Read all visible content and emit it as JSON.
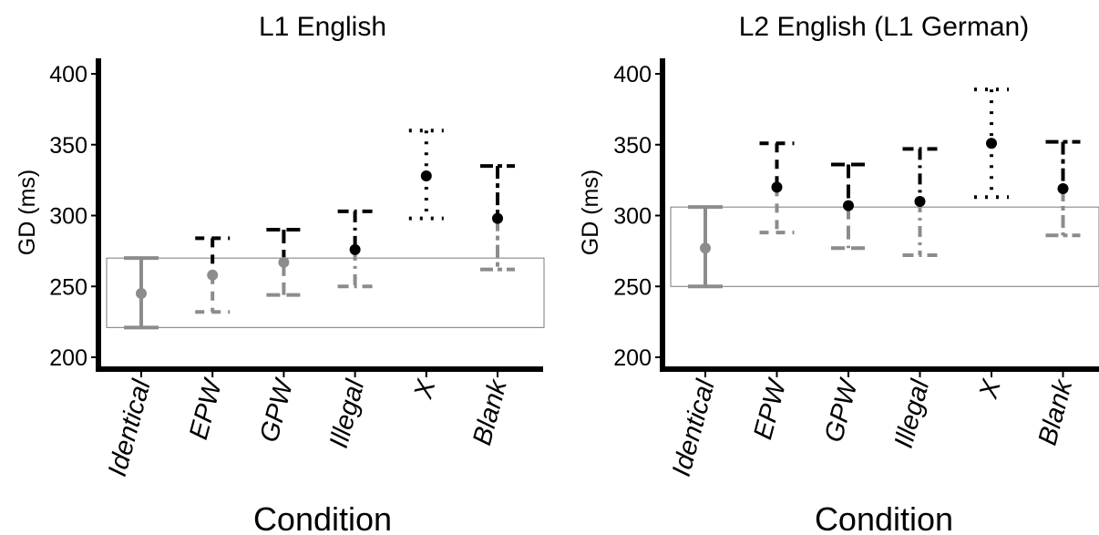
{
  "chart_data": [
    {
      "type": "errorbar",
      "title": "L1 English",
      "xlabel": "Condition",
      "ylabel": "GD (ms)",
      "ylim": [
        195,
        402
      ],
      "yticks": [
        200,
        250,
        300,
        350,
        400
      ],
      "categories": [
        "Identical",
        "EPW",
        "GPW",
        "Illegal",
        "X",
        "Blank"
      ],
      "reference_band": [
        221,
        270
      ],
      "points": [
        {
          "mean": 245,
          "low": 221,
          "high": 270,
          "lower_style": "solid",
          "upper_style": "solid",
          "lower_color": "#8c8c8c",
          "upper_color": "#8c8c8c",
          "point_color": "#8c8c8c"
        },
        {
          "mean": 258,
          "low": 232,
          "high": 284,
          "lower_style": "dashed",
          "upper_style": "dashed",
          "lower_color": "#8c8c8c",
          "upper_color": "#000000",
          "point_color": "#8c8c8c"
        },
        {
          "mean": 267,
          "low": 244,
          "high": 290,
          "lower_style": "longdash",
          "upper_style": "longdash",
          "lower_color": "#8c8c8c",
          "upper_color": "#000000",
          "point_color": "#8c8c8c"
        },
        {
          "mean": 276,
          "low": 250,
          "high": 303,
          "lower_style": "dashdot",
          "upper_style": "dashdot",
          "lower_color": "#8c8c8c",
          "upper_color": "#000000",
          "point_color": "#000000"
        },
        {
          "mean": 328,
          "low": 298,
          "high": 360,
          "lower_style": "dotted",
          "upper_style": "dotted",
          "lower_color": "#000000",
          "upper_color": "#000000",
          "point_color": "#000000"
        },
        {
          "mean": 298,
          "low": 262,
          "high": 335,
          "lower_style": "twodash",
          "upper_style": "twodash",
          "lower_color": "#8c8c8c",
          "upper_color": "#000000",
          "point_color": "#000000"
        }
      ]
    },
    {
      "type": "errorbar",
      "title": "L2 English (L1 German)",
      "xlabel": "Condition",
      "ylabel": "GD (ms)",
      "ylim": [
        195,
        402
      ],
      "yticks": [
        200,
        250,
        300,
        350,
        400
      ],
      "categories": [
        "Identical",
        "EPW",
        "GPW",
        "Illegal",
        "X",
        "Blank"
      ],
      "reference_band": [
        250,
        306
      ],
      "points": [
        {
          "mean": 277,
          "low": 250,
          "high": 306,
          "lower_style": "solid",
          "upper_style": "solid",
          "lower_color": "#8c8c8c",
          "upper_color": "#8c8c8c",
          "point_color": "#8c8c8c"
        },
        {
          "mean": 320,
          "low": 288,
          "high": 351,
          "lower_style": "dashed",
          "upper_style": "dashed",
          "lower_color": "#8c8c8c",
          "upper_color": "#000000",
          "point_color": "#000000"
        },
        {
          "mean": 307,
          "low": 277,
          "high": 336,
          "lower_style": "longdash",
          "upper_style": "longdash",
          "lower_color": "#8c8c8c",
          "upper_color": "#000000",
          "point_color": "#000000"
        },
        {
          "mean": 310,
          "low": 272,
          "high": 347,
          "lower_style": "dashdot",
          "upper_style": "dashdot",
          "lower_color": "#8c8c8c",
          "upper_color": "#000000",
          "point_color": "#000000"
        },
        {
          "mean": 351,
          "low": 313,
          "high": 389,
          "lower_style": "dotted",
          "upper_style": "dotted",
          "lower_color": "#000000",
          "upper_color": "#000000",
          "point_color": "#000000"
        },
        {
          "mean": 319,
          "low": 286,
          "high": 352,
          "lower_style": "twodash",
          "upper_style": "twodash",
          "lower_color": "#8c8c8c",
          "upper_color": "#000000",
          "point_color": "#000000"
        }
      ]
    }
  ]
}
